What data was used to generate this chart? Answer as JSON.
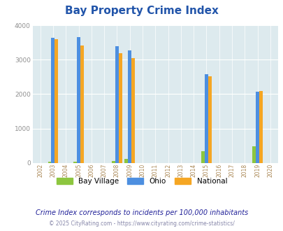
{
  "title": "Bay Property Crime Index",
  "years": [
    2002,
    2003,
    2004,
    2005,
    2006,
    2007,
    2008,
    2009,
    2010,
    2011,
    2012,
    2013,
    2014,
    2015,
    2016,
    2017,
    2018,
    2019,
    2020
  ],
  "bay_village": [
    0,
    30,
    0,
    30,
    0,
    0,
    60,
    120,
    0,
    0,
    0,
    0,
    0,
    330,
    0,
    0,
    0,
    480,
    0
  ],
  "ohio": [
    0,
    3640,
    0,
    3660,
    0,
    0,
    3400,
    3280,
    0,
    0,
    0,
    0,
    0,
    2590,
    0,
    0,
    0,
    2070,
    0
  ],
  "national": [
    0,
    3590,
    0,
    3420,
    0,
    0,
    3200,
    3040,
    0,
    0,
    0,
    0,
    0,
    2510,
    0,
    0,
    0,
    2100,
    0
  ],
  "bay_village_color": "#8dc63f",
  "ohio_color": "#4d8fe0",
  "national_color": "#f5a623",
  "bg_color": "#ddeaee",
  "ylim": [
    0,
    4000
  ],
  "yticks": [
    0,
    1000,
    2000,
    3000,
    4000
  ],
  "subtitle": "Crime Index corresponds to incidents per 100,000 inhabitants",
  "copyright": "© 2025 CityRating.com - https://www.cityrating.com/crime-statistics/",
  "title_color": "#2255aa",
  "subtitle_color": "#222299",
  "copyright_color": "#8888aa",
  "xtick_color": "#aa8855"
}
